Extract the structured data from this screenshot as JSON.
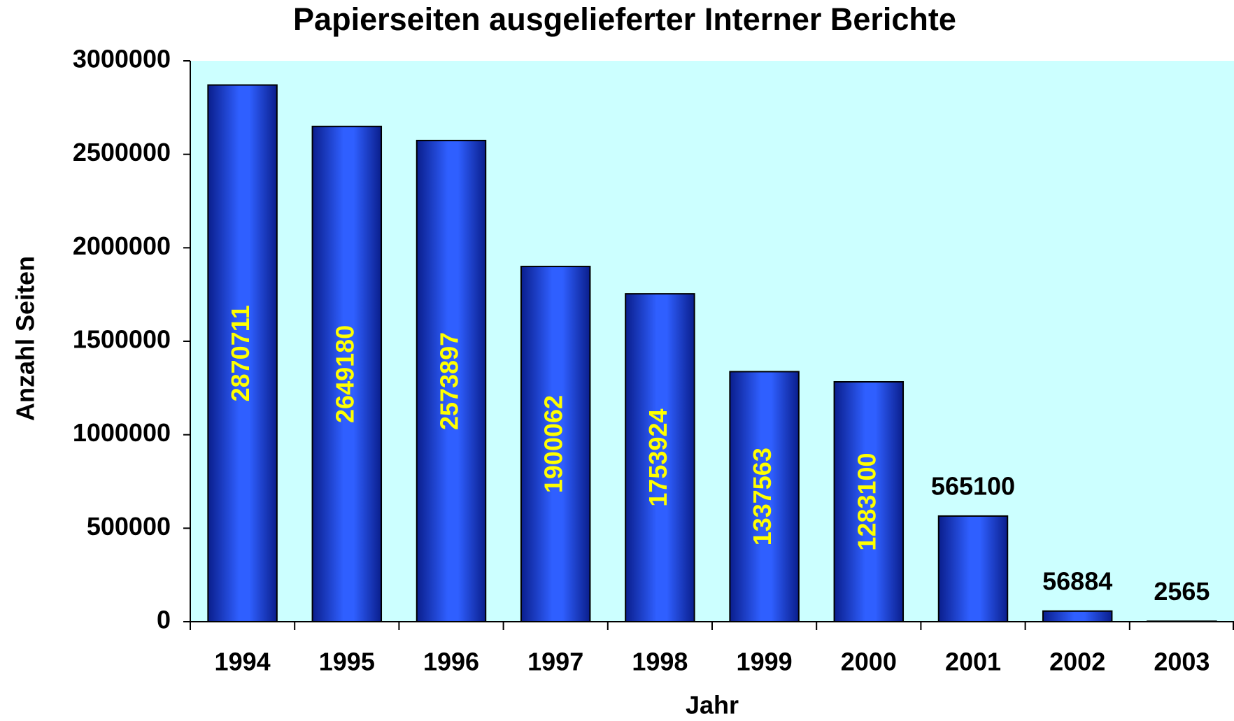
{
  "chart_data": {
    "type": "bar",
    "title": "Papierseiten ausgelieferter Interner Berichte",
    "x_label": "Jahr",
    "y_label": "Anzahl Seiten",
    "categories": [
      "1994",
      "1995",
      "1996",
      "1997",
      "1998",
      "1999",
      "2000",
      "2001",
      "2002",
      "2003"
    ],
    "values": [
      2870711,
      2649180,
      2573897,
      1900062,
      1753924,
      1337563,
      1283100,
      565100,
      56884,
      2565
    ],
    "color": "#2f5fff",
    "ylim": [
      0,
      3000000
    ],
    "yticks": [
      0,
      500000,
      1000000,
      1500000,
      2000000,
      2500000,
      3000000
    ],
    "grid": false
  }
}
